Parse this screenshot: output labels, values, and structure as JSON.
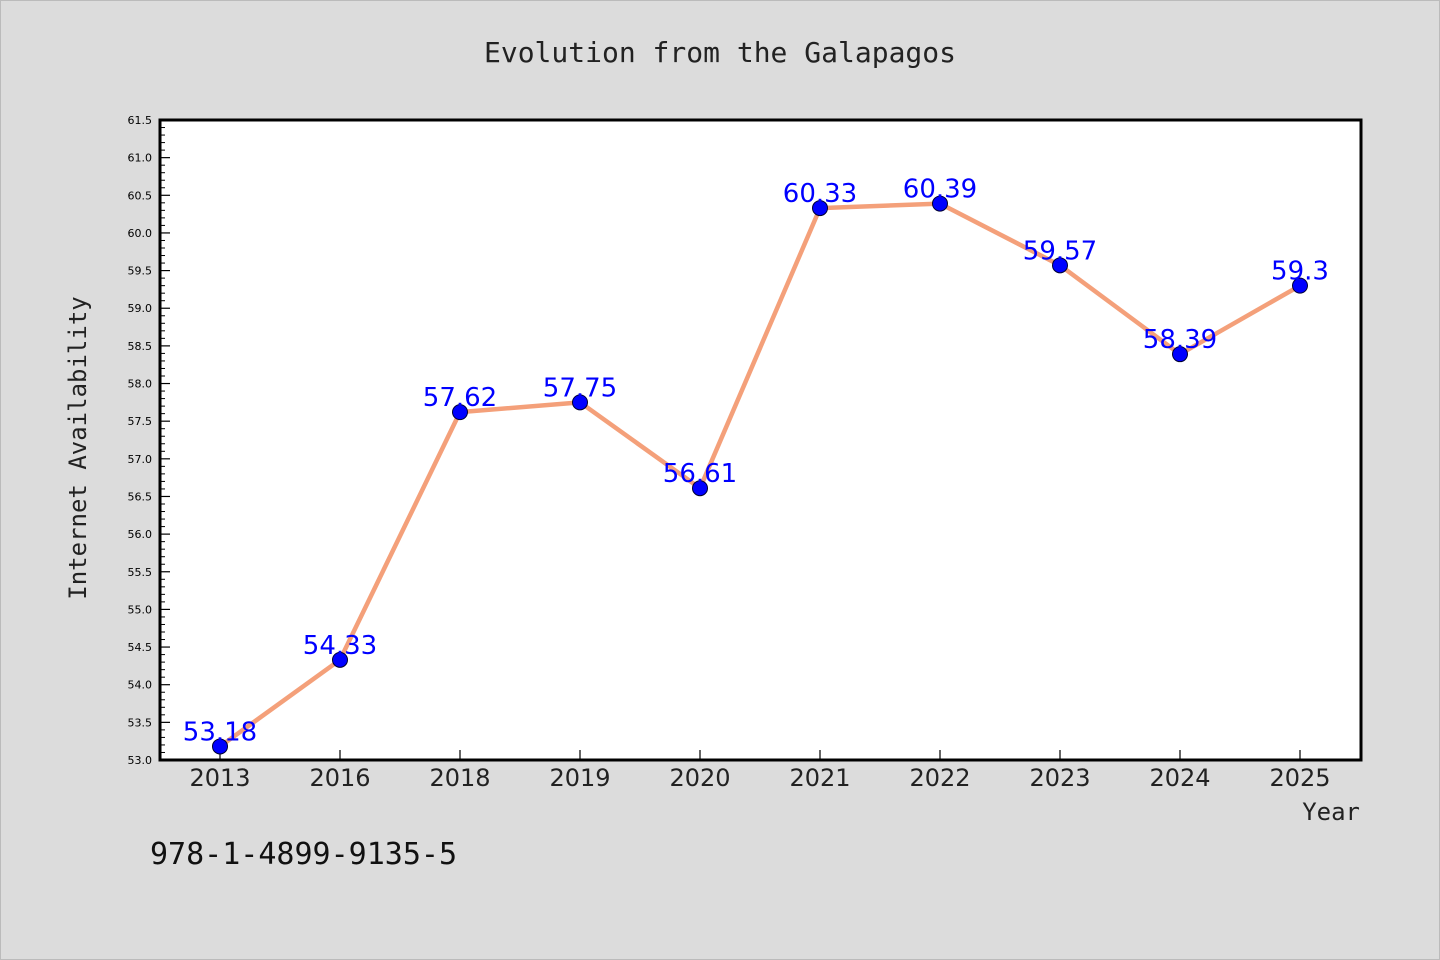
{
  "chart_data": {
    "type": "line",
    "title": "Evolution from the Galapagos",
    "xlabel": "Year",
    "ylabel": "Internet Availability",
    "categories": [
      "2013",
      "2016",
      "2018",
      "2019",
      "2020",
      "2021",
      "2022",
      "2023",
      "2024",
      "2025"
    ],
    "series": [
      {
        "values": [
          53.18,
          54.33,
          57.62,
          57.75,
          56.61,
          60.33,
          60.39,
          59.57,
          58.39,
          59.3
        ]
      }
    ],
    "data_labels": [
      "53.18",
      "54.33",
      "57.62",
      "57.75",
      "56.61",
      "60.33",
      "60.39",
      "59.57",
      "58.39",
      "59.3"
    ],
    "y_ticks": [
      "53.0",
      "53.5",
      "54.0",
      "54.5",
      "55.0",
      "55.5",
      "56.0",
      "56.5",
      "57.0",
      "57.5",
      "58.0",
      "58.5",
      "59.0",
      "59.5",
      "60.0",
      "60.5",
      "61.0",
      "61.5"
    ],
    "ylim": [
      53.0,
      61.5
    ],
    "grid": false,
    "line_color": "#f4a07a",
    "marker_color": "#0000ff",
    "label_color": "#0000ff",
    "background_color": "#dcdcdc",
    "plot_background_color": "#ffffff"
  },
  "footer": {
    "isbn": "978-1-4899-9135-5"
  }
}
